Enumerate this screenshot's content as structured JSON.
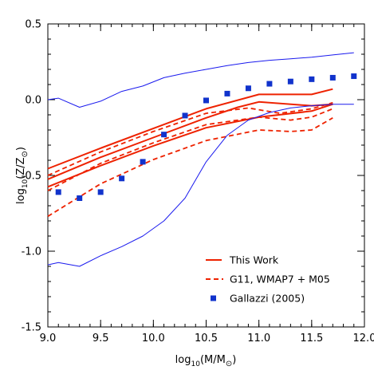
{
  "chart_data": {
    "type": "line",
    "xlabel": {
      "prefix": "log",
      "sub": "10",
      "rest": "(M/M",
      "sun": "⊙",
      "close": ")"
    },
    "ylabel": {
      "prefix": "log",
      "sub": "10",
      "rest": "(Z/Z",
      "sun": "⊙",
      "close": ")"
    },
    "xlim": [
      9.0,
      12.0
    ],
    "ylim": [
      -1.5,
      0.5
    ],
    "xticks": [
      9.0,
      9.5,
      10.0,
      10.5,
      11.0,
      11.5,
      12.0
    ],
    "xtick_labels": [
      "9.0",
      "9.5",
      "10.0",
      "10.5",
      "11.0",
      "11.5",
      "12.0"
    ],
    "yticks": [
      -1.5,
      -1.0,
      -0.5,
      0.0,
      0.5
    ],
    "ytick_labels": [
      "-1.5",
      "-1.0",
      "-0.5",
      "0.0",
      "0.5"
    ],
    "grid": false,
    "legend_position": "bottom-right",
    "colors": {
      "red": "#ee2200",
      "blue": "#1a1aee",
      "square": "#1133cc"
    },
    "legend": [
      {
        "label": "This Work",
        "style": "solid-red"
      },
      {
        "label": "G11, WMAP7 + M05",
        "style": "dashed-red"
      },
      {
        "label": "Gallazzi (2005)",
        "style": "blue-square"
      }
    ],
    "series": [
      {
        "style": "red-solid",
        "x": [
          9.0,
          9.5,
          10.0,
          10.5,
          11.0,
          11.5,
          11.7
        ],
        "y": [
          -0.455,
          -0.32,
          -0.19,
          -0.06,
          0.035,
          0.035,
          0.07
        ]
      },
      {
        "style": "red-solid",
        "x": [
          9.0,
          9.5,
          10.0,
          10.5,
          10.8,
          11.0,
          11.5,
          11.7
        ],
        "y": [
          -0.525,
          -0.38,
          -0.25,
          -0.12,
          -0.05,
          -0.015,
          -0.04,
          -0.03
        ]
      },
      {
        "style": "red-solid",
        "x": [
          9.0,
          9.5,
          10.0,
          10.5,
          11.0,
          11.5,
          11.7
        ],
        "y": [
          -0.575,
          -0.435,
          -0.305,
          -0.185,
          -0.115,
          -0.075,
          -0.03
        ]
      },
      {
        "style": "red-dashed",
        "x": [
          9.0,
          9.5,
          10.0,
          10.5,
          10.9,
          11.2,
          11.5,
          11.7
        ],
        "y": [
          -0.5,
          -0.345,
          -0.21,
          -0.09,
          -0.055,
          -0.09,
          -0.06,
          -0.02
        ]
      },
      {
        "style": "red-dashed",
        "x": [
          9.0,
          9.5,
          10.0,
          10.5,
          11.0,
          11.3,
          11.5,
          11.7
        ],
        "y": [
          -0.6,
          -0.42,
          -0.285,
          -0.165,
          -0.115,
          -0.135,
          -0.115,
          -0.06
        ]
      },
      {
        "style": "red-dashed",
        "x": [
          9.0,
          9.5,
          10.0,
          10.5,
          11.0,
          11.3,
          11.5,
          11.7
        ],
        "y": [
          -0.77,
          -0.555,
          -0.395,
          -0.27,
          -0.2,
          -0.21,
          -0.2,
          -0.12
        ]
      },
      {
        "style": "blue-solid",
        "x": [
          9.0,
          9.1,
          9.3,
          9.5,
          9.7,
          9.9,
          10.1,
          10.3,
          10.5,
          10.7,
          10.9,
          11.1,
          11.3,
          11.5,
          11.7,
          11.9
        ],
        "y": [
          0.0,
          0.01,
          -0.05,
          -0.01,
          0.055,
          0.09,
          0.145,
          0.175,
          0.2,
          0.225,
          0.245,
          0.26,
          0.27,
          0.28,
          0.295,
          0.31
        ]
      },
      {
        "style": "blue-solid",
        "x": [
          9.0,
          9.1,
          9.3,
          9.5,
          9.7,
          9.9,
          10.1,
          10.3,
          10.5,
          10.7,
          10.9,
          11.1,
          11.3,
          11.5,
          11.7,
          11.9
        ],
        "y": [
          -1.09,
          -1.075,
          -1.1,
          -1.03,
          -0.97,
          -0.9,
          -0.8,
          -0.65,
          -0.41,
          -0.235,
          -0.135,
          -0.085,
          -0.055,
          -0.04,
          -0.03,
          -0.03
        ]
      },
      {
        "style": "blue-square",
        "x": [
          9.1,
          9.3,
          9.5,
          9.7,
          9.9,
          10.1,
          10.3,
          10.5,
          10.7,
          10.9,
          11.1,
          11.3,
          11.5,
          11.7,
          11.9
        ],
        "y": [
          -0.61,
          -0.65,
          -0.61,
          -0.52,
          -0.41,
          -0.23,
          -0.105,
          -0.005,
          0.04,
          0.075,
          0.105,
          0.12,
          0.135,
          0.145,
          0.155
        ]
      }
    ]
  }
}
